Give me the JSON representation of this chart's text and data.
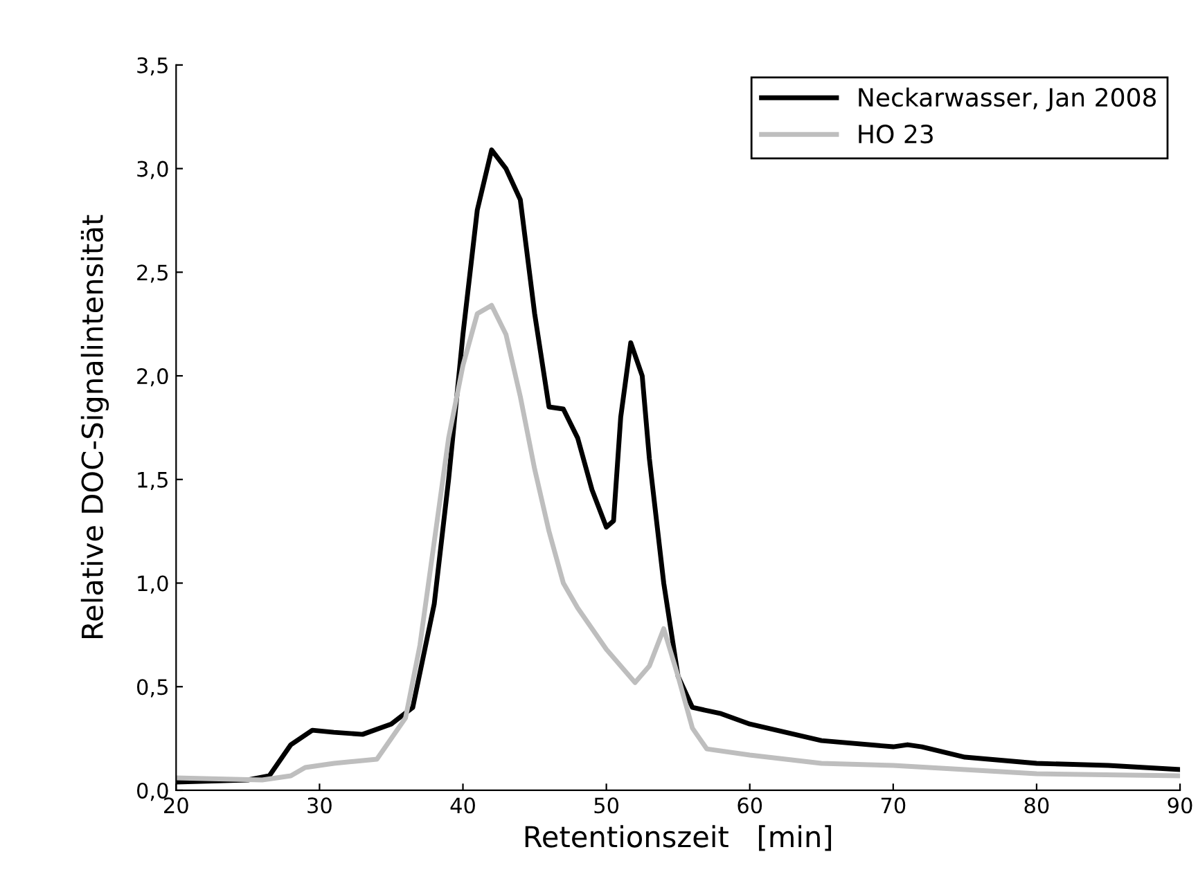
{
  "chart_data": {
    "type": "line",
    "xlabel": "Retentionszeit   [min]",
    "ylabel": "Relative DOC-Signalintensität",
    "xlim": [
      20,
      90
    ],
    "xticks": [
      20,
      30,
      40,
      50,
      60,
      70,
      80,
      90
    ],
    "ylim": [
      0,
      3.5
    ],
    "yticks": [
      {
        "value": 0,
        "label": "0,0"
      },
      {
        "value": 0.5,
        "label": "0,5"
      },
      {
        "value": 1,
        "label": "1,0"
      },
      {
        "value": 1.5,
        "label": "1,5"
      },
      {
        "value": 2,
        "label": "2,0"
      },
      {
        "value": 2.5,
        "label": "2,5"
      },
      {
        "value": 3,
        "label": "3,0"
      },
      {
        "value": 3.5,
        "label": "3,5"
      }
    ],
    "legend": "top right",
    "grid": false,
    "line_style": "solid",
    "series": [
      {
        "name": "Neckarwasser, Jan 2008",
        "color": "#000000",
        "x": [
          20,
          25,
          26.5,
          28,
          29.5,
          31,
          33,
          35,
          36.5,
          38,
          39,
          40,
          41,
          42,
          43,
          44,
          45,
          46,
          47,
          48,
          49,
          50,
          50.5,
          51,
          51.7,
          52.5,
          53,
          54,
          55,
          56,
          58,
          60,
          65,
          70,
          71,
          72,
          75,
          80,
          85,
          90
        ],
        "values": [
          0.04,
          0.05,
          0.07,
          0.22,
          0.29,
          0.28,
          0.27,
          0.32,
          0.4,
          0.9,
          1.5,
          2.2,
          2.8,
          3.09,
          3.0,
          2.85,
          2.3,
          1.85,
          1.84,
          1.7,
          1.45,
          1.27,
          1.3,
          1.8,
          2.16,
          2.0,
          1.6,
          1.0,
          0.55,
          0.4,
          0.37,
          0.32,
          0.24,
          0.21,
          0.22,
          0.21,
          0.16,
          0.13,
          0.12,
          0.1
        ]
      },
      {
        "name": "HO 23",
        "color": "#bebebe",
        "x": [
          20,
          26,
          28,
          29,
          31,
          34,
          36,
          37,
          38,
          39,
          40,
          41,
          42,
          43,
          44,
          45,
          46,
          47,
          48,
          50,
          52,
          53,
          54,
          55,
          56,
          57,
          60,
          65,
          70,
          75,
          80,
          90
        ],
        "values": [
          0.06,
          0.05,
          0.07,
          0.11,
          0.13,
          0.15,
          0.35,
          0.7,
          1.2,
          1.7,
          2.05,
          2.3,
          2.34,
          2.2,
          1.9,
          1.55,
          1.25,
          1.0,
          0.88,
          0.68,
          0.52,
          0.6,
          0.78,
          0.55,
          0.3,
          0.2,
          0.17,
          0.13,
          0.12,
          0.1,
          0.08,
          0.07
        ]
      }
    ]
  }
}
